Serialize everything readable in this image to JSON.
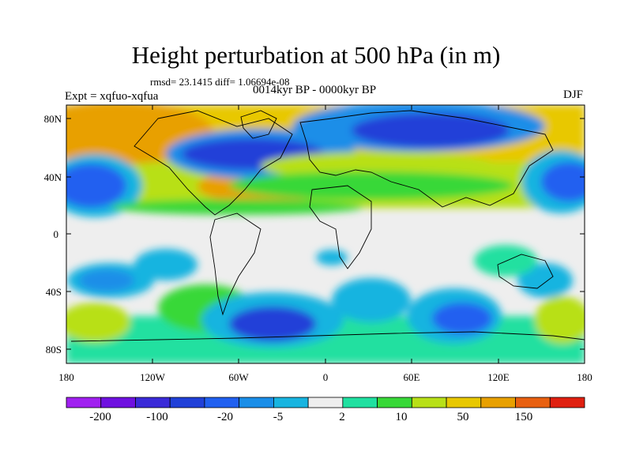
{
  "title": "Height perturbation at 500 hPa (in m)",
  "stats": "rmsd= 23.1415 diff= 1.06694e-08",
  "period": "0014kyr BP - 0000kyr BP",
  "experiment": "Expt = xqfuo-xqfua",
  "season": "DJF",
  "lat_labels": [
    "80N",
    "40N",
    "0",
    "40S",
    "80S"
  ],
  "lon_labels": [
    "180",
    "120W",
    "60W",
    "0",
    "60E",
    "120E",
    "180"
  ],
  "colorbar": {
    "colors": [
      "#a020f0",
      "#6f10e0",
      "#3a2ad8",
      "#2040d8",
      "#2060f0",
      "#1a8ee8",
      "#18b4e0",
      "#eeeeee",
      "#20e0a0",
      "#38d838",
      "#b8e018",
      "#e8c800",
      "#e8a000",
      "#e86010",
      "#e02010"
    ],
    "labels": [
      "-200",
      "-100",
      "-20",
      "-5",
      "2",
      "10",
      "50",
      "150"
    ]
  }
}
